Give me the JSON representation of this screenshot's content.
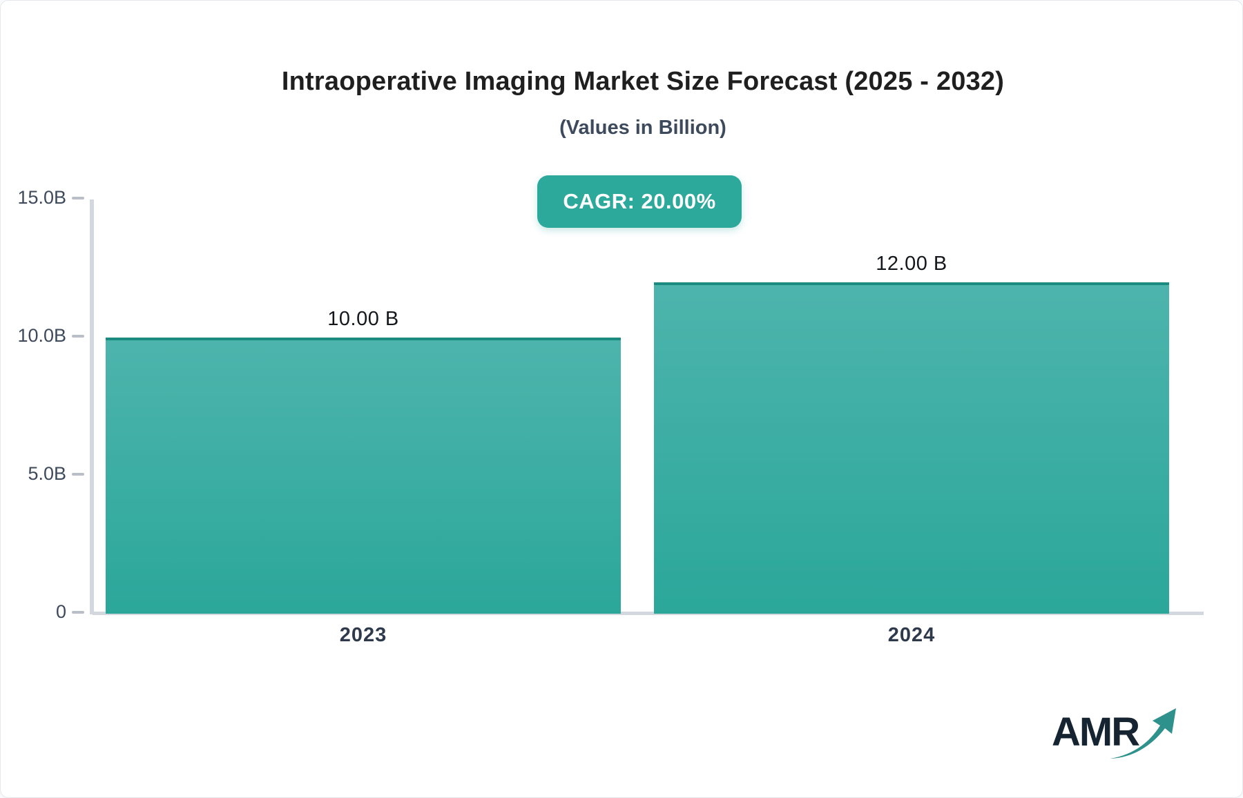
{
  "header": {
    "title": "Intraoperative Imaging Market Size Forecast (2025 - 2032)",
    "subtitle": "(Values in Billion)",
    "cagr_badge": "CAGR: 20.00%"
  },
  "chart_data": {
    "type": "bar",
    "title": "Intraoperative Imaging Market Size Forecast (2025 - 2032)",
    "subtitle": "(Values in Billion)",
    "cagr_annotation": "CAGR: 20.00%",
    "categories": [
      "2023",
      "2024"
    ],
    "values": [
      10.0,
      12.0
    ],
    "bar_labels": [
      "10.00 B",
      "12.00 B"
    ],
    "unit": "Billion",
    "xlabel": "",
    "ylabel": "",
    "ylim": [
      0,
      15
    ],
    "yticks": [
      {
        "value": 15,
        "label": "15.0B"
      },
      {
        "value": 10,
        "label": "10.0B"
      },
      {
        "value": 5,
        "label": "5.0B"
      },
      {
        "value": 0,
        "label": "0"
      }
    ],
    "grid": false,
    "legend": false
  },
  "logo": {
    "text": "AMR",
    "icon": "trend-up-arrow-icon"
  },
  "colors": {
    "bar_top": "#4db4ac",
    "bar_bottom": "#2ba79a",
    "bar_border": "#1b8a80",
    "badge_bg": "#2ca99b",
    "badge_text": "#ffffff",
    "axis_line": "#d3d7de",
    "tick_text": "#3e4a5b",
    "title_text": "#1f1f1f",
    "subtitle_text": "#3d4a5c",
    "logo_text": "#152430",
    "logo_arrow": "#2e918b"
  }
}
